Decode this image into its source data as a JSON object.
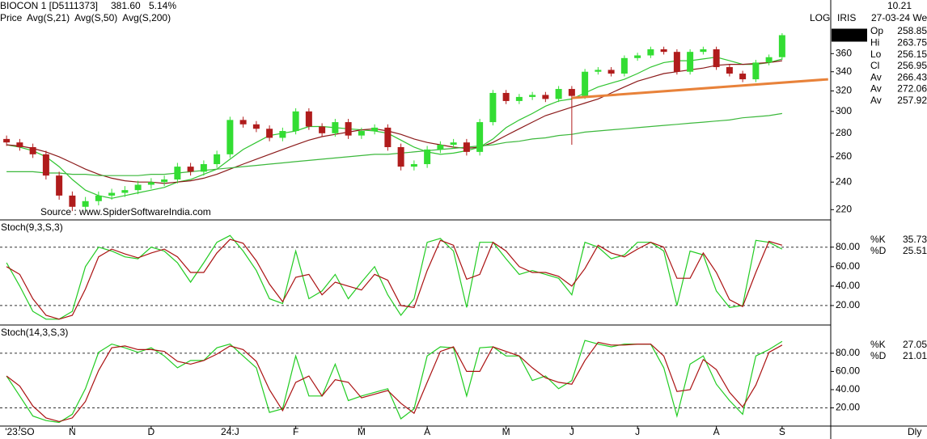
{
  "header": {
    "symbol": "BIOCON 1 [D5111373]",
    "price": "381.60",
    "change": "5.14%",
    "frequency": "Dly"
  },
  "iris": {
    "mode": "LOG",
    "name": "IRIS",
    "time": "10.21",
    "date": "27-03-24 We",
    "rows": [
      {
        "label": "Op",
        "value": "258.85",
        "color": "#22bb22"
      },
      {
        "label": "Hi",
        "value": "263.75",
        "color": "#cc0000"
      },
      {
        "label": "Lo",
        "value": "256.15",
        "color": "#f2b6b6"
      },
      {
        "label": "Cl",
        "value": "256.95",
        "color": "#cc00cc"
      },
      {
        "label": "Av",
        "value": "266.43",
        "color": "#22bb22"
      },
      {
        "label": "Av",
        "value": "272.06",
        "color": "#22bb22"
      },
      {
        "label": "Av",
        "value": "257.92",
        "color": "#22bb22"
      }
    ]
  },
  "chart_data": [
    {
      "type": "candlestick",
      "name": "Price",
      "log": true,
      "categories": [
        null,
        "'23:SO",
        null,
        null,
        null,
        "N",
        null,
        null,
        null,
        null,
        null,
        "D",
        null,
        null,
        null,
        null,
        null,
        "24:J",
        null,
        null,
        null,
        null,
        "F",
        null,
        null,
        null,
        null,
        "M",
        null,
        null,
        null,
        null,
        "A",
        null,
        null,
        null,
        null,
        null,
        "M",
        null,
        null,
        null,
        null,
        "J",
        null,
        null,
        null,
        null,
        "J",
        null,
        null,
        null,
        null,
        null,
        "A",
        null,
        null,
        null,
        null,
        "S"
      ],
      "open": [
        275,
        272,
        268,
        262,
        245,
        230,
        222,
        226,
        230,
        232,
        234,
        238,
        240,
        242,
        252,
        248,
        254,
        262,
        292,
        288,
        284,
        276,
        282,
        300,
        286,
        280,
        290,
        278,
        282,
        285,
        268,
        252,
        254,
        266,
        270,
        272,
        264,
        290,
        318,
        310,
        314,
        316,
        312,
        322,
        315,
        340,
        342,
        338,
        355,
        358,
        365,
        362,
        340,
        362,
        365,
        345,
        338,
        332,
        350,
        356
      ],
      "high": [
        278,
        275,
        271,
        265,
        248,
        233,
        229,
        233,
        235,
        237,
        241,
        243,
        245,
        255,
        255,
        257,
        265,
        295,
        295,
        291,
        287,
        285,
        303,
        303,
        289,
        293,
        293,
        285,
        288,
        288,
        271,
        257,
        269,
        273,
        275,
        275,
        293,
        321,
        321,
        317,
        319,
        319,
        325,
        325,
        343,
        345,
        345,
        358,
        361,
        368,
        368,
        365,
        365,
        368,
        368,
        348,
        341,
        353,
        359,
        384
      ],
      "low": [
        269,
        265,
        259,
        242,
        227,
        219,
        219,
        223,
        227,
        229,
        231,
        235,
        237,
        239,
        245,
        245,
        251,
        259,
        285,
        281,
        273,
        273,
        279,
        283,
        277,
        277,
        275,
        275,
        279,
        265,
        249,
        249,
        251,
        263,
        267,
        261,
        261,
        287,
        307,
        307,
        311,
        309,
        309,
        270,
        312,
        337,
        335,
        335,
        352,
        355,
        359,
        337,
        337,
        359,
        342,
        335,
        329,
        329,
        347,
        353
      ],
      "close": [
        272,
        268,
        262,
        245,
        230,
        222,
        226,
        230,
        232,
        234,
        238,
        240,
        242,
        252,
        248,
        254,
        262,
        292,
        288,
        284,
        276,
        282,
        300,
        286,
        280,
        290,
        278,
        282,
        285,
        268,
        252,
        254,
        266,
        270,
        272,
        264,
        290,
        318,
        310,
        314,
        316,
        312,
        322,
        315,
        340,
        342,
        338,
        355,
        358,
        365,
        362,
        340,
        362,
        365,
        345,
        338,
        332,
        350,
        356,
        381.6
      ],
      "up_color": "#33dd33",
      "down_color": "#b01c1c",
      "series": [
        {
          "name": "Avg(S,21)",
          "color": "#2fc42f",
          "values": [
            270,
            268,
            265,
            260,
            252,
            242,
            234,
            230,
            228,
            230,
            232,
            234,
            236,
            240,
            242,
            246,
            250,
            258,
            266,
            272,
            278,
            280,
            282,
            286,
            286,
            285,
            284,
            283,
            282,
            280,
            274,
            268,
            264,
            262,
            263,
            265,
            268,
            275,
            285,
            292,
            298,
            305,
            310,
            312,
            318,
            324,
            328,
            332,
            338,
            345,
            350,
            352,
            352,
            354,
            356,
            352,
            348,
            348,
            350,
            354
          ]
        },
        {
          "name": "Avg(S,50)",
          "color": "#8b1a1a",
          "values": [
            270,
            269,
            267,
            264,
            260,
            255,
            250,
            246,
            243,
            241,
            240,
            240,
            239,
            240,
            241,
            243,
            246,
            250,
            254,
            258,
            262,
            266,
            270,
            274,
            277,
            279,
            281,
            283,
            284,
            282,
            279,
            275,
            272,
            270,
            268,
            267,
            268,
            272,
            278,
            284,
            290,
            296,
            300,
            304,
            308,
            312,
            318,
            324,
            330,
            334,
            338,
            340,
            342,
            344,
            347,
            348,
            348,
            349,
            350,
            352
          ]
        },
        {
          "name": "Avg(S,200)",
          "color": "#3cb83c",
          "values": [
            248,
            248,
            248,
            247,
            247,
            246,
            246,
            245,
            245,
            245,
            245,
            246,
            246,
            247,
            248,
            249,
            250,
            251,
            252,
            253,
            254,
            255,
            256,
            257,
            258,
            259,
            260,
            261,
            262,
            262,
            263,
            264,
            265,
            266,
            267,
            268,
            269,
            270,
            272,
            273,
            275,
            276,
            278,
            279,
            281,
            282,
            283,
            284,
            285,
            286,
            287,
            288,
            289,
            290,
            291,
            292,
            294,
            295,
            296,
            298
          ]
        }
      ],
      "trendline": {
        "color": "#e8823a",
        "start": [
          43,
          313
        ],
        "end": [
          62.5,
          332
        ]
      },
      "ylim": [
        213,
        397
      ],
      "yticks": [
        220,
        240,
        260,
        280,
        300,
        320,
        340,
        360
      ],
      "source": "Source : www.SpiderSoftwareIndia.com"
    },
    {
      "type": "line",
      "title": "Stoch(9,3,S,3)",
      "series": [
        {
          "name": "%K",
          "color": "#22cc22",
          "readout": "35.73",
          "values": [
            64,
            40,
            14,
            6,
            6,
            14,
            60,
            80,
            76,
            70,
            68,
            80,
            76,
            64,
            44,
            64,
            85,
            92,
            76,
            56,
            27,
            22,
            76,
            27,
            35,
            52,
            27,
            44,
            60,
            31,
            10,
            27,
            85,
            89,
            76,
            18,
            85,
            85,
            68,
            52,
            56,
            52,
            48,
            31,
            85,
            80,
            68,
            72,
            85,
            85,
            76,
            20,
            76,
            72,
            35,
            18,
            20,
            87,
            85,
            78
          ]
        },
        {
          "name": "%D",
          "color": "#aa1111",
          "readout": "25.51",
          "values": [
            60,
            52,
            27,
            10,
            6,
            10,
            37,
            70,
            78,
            73,
            69,
            74,
            78,
            70,
            54,
            54,
            74,
            88,
            84,
            66,
            42,
            24,
            49,
            52,
            31,
            44,
            40,
            36,
            52,
            46,
            20,
            18,
            56,
            87,
            82,
            47,
            52,
            85,
            76,
            60,
            54,
            54,
            50,
            40,
            58,
            82,
            74,
            70,
            78,
            85,
            80,
            48,
            48,
            74,
            54,
            26,
            19,
            54,
            86,
            82
          ]
        }
      ],
      "ylim": [
        0,
        108
      ],
      "yticks": [
        {
          "value": 20,
          "label": "20.00"
        },
        {
          "value": 40,
          "label": "40.00"
        },
        {
          "value": 60,
          "label": "60.00"
        },
        {
          "value": 80,
          "label": "80.00"
        }
      ],
      "levels": [
        20,
        80
      ]
    },
    {
      "type": "line",
      "title": "Stoch(14,3,S,3)",
      "series": [
        {
          "name": "%K",
          "color": "#22cc22",
          "readout": "27.05",
          "values": [
            55,
            33,
            11,
            6,
            4,
            13,
            41,
            81,
            90,
            86,
            81,
            86,
            77,
            64,
            72,
            72,
            86,
            90,
            77,
            64,
            15,
            19,
            77,
            33,
            33,
            68,
            28,
            33,
            37,
            41,
            8,
            19,
            77,
            87,
            86,
            33,
            86,
            87,
            77,
            77,
            50,
            55,
            41,
            50,
            94,
            90,
            87,
            90,
            90,
            90,
            64,
            11,
            68,
            77,
            46,
            28,
            13,
            77,
            84,
            93
          ]
        },
        {
          "name": "%D",
          "color": "#aa1111",
          "readout": "21.01",
          "values": [
            55,
            44,
            22,
            9,
            5,
            9,
            27,
            61,
            86,
            88,
            84,
            84,
            82,
            71,
            68,
            72,
            79,
            88,
            84,
            71,
            40,
            17,
            48,
            55,
            33,
            51,
            48,
            31,
            35,
            39,
            25,
            14,
            48,
            82,
            87,
            60,
            60,
            87,
            82,
            77,
            64,
            53,
            48,
            46,
            72,
            92,
            89,
            89,
            90,
            90,
            77,
            38,
            40,
            73,
            62,
            37,
            21,
            45,
            81,
            89
          ]
        }
      ],
      "ylim": [
        0,
        111
      ],
      "yticks": [
        {
          "value": 20,
          "label": "20.00"
        },
        {
          "value": 40,
          "label": "40.00"
        },
        {
          "value": 60,
          "label": "60.00"
        },
        {
          "value": 80,
          "label": "80.00"
        }
      ],
      "levels": [
        20,
        80
      ]
    }
  ]
}
